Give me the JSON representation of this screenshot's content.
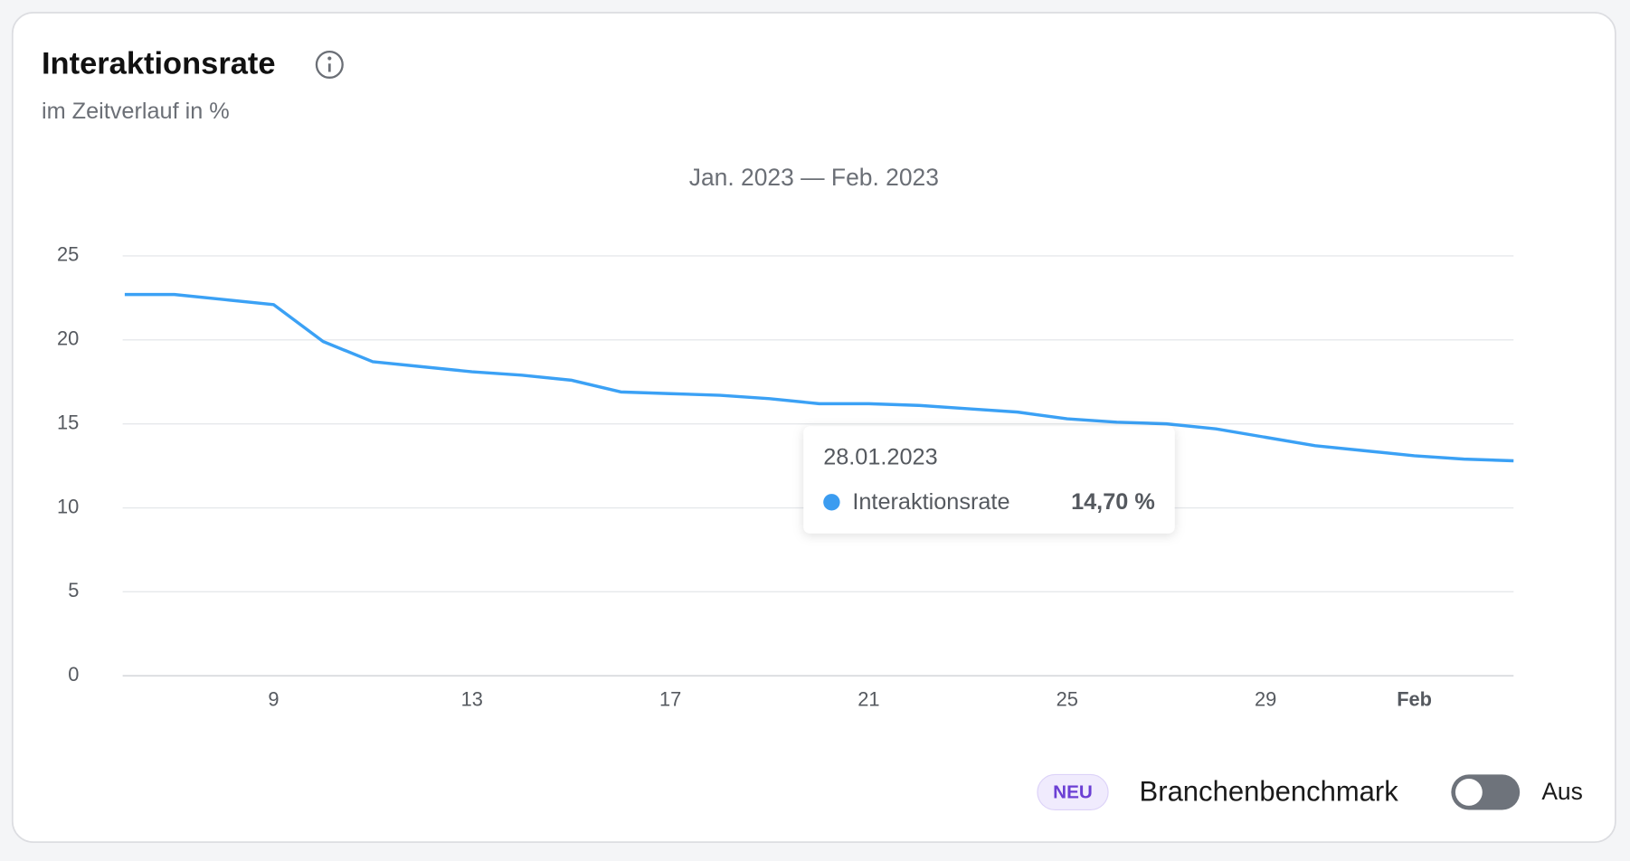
{
  "chart_data": {
    "type": "line",
    "title": "Interaktionsrate",
    "subtitle": "im Zeitverlauf in %",
    "date_range": "Jan. 2023 — Feb. 2023",
    "categories": [
      null,
      null,
      null,
      "9",
      null,
      null,
      null,
      "13",
      null,
      null,
      null,
      "17",
      null,
      null,
      null,
      "21",
      null,
      null,
      null,
      "25",
      null,
      null,
      null,
      "29",
      null,
      null,
      "Feb",
      null,
      null
    ],
    "series": [
      {
        "name": "Interaktionsrate",
        "color": "#3ba1f5",
        "values": [
          22.7,
          22.7,
          22.4,
          22.1,
          19.9,
          18.7,
          18.4,
          18.1,
          17.9,
          17.6,
          16.9,
          16.8,
          16.7,
          16.5,
          16.2,
          16.2,
          16.1,
          15.9,
          15.7,
          15.3,
          15.1,
          15.0,
          14.7,
          14.2,
          13.7,
          13.4,
          13.1,
          12.9,
          12.8
        ]
      }
    ],
    "ylim": [
      0,
      25
    ],
    "yticks": [
      0,
      5,
      10,
      15,
      20,
      25
    ],
    "grid": true,
    "tooltip": {
      "date": "28.01.2023",
      "value_label": "14,70 %"
    }
  },
  "footer": {
    "badge": "NEU",
    "label": "Branchenbenchmark",
    "toggle_state": "Aus"
  }
}
